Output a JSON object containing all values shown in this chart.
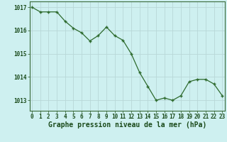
{
  "x": [
    0,
    1,
    2,
    3,
    4,
    5,
    6,
    7,
    8,
    9,
    10,
    11,
    12,
    13,
    14,
    15,
    16,
    17,
    18,
    19,
    20,
    21,
    22,
    23
  ],
  "y": [
    1017.0,
    1016.8,
    1016.8,
    1016.8,
    1016.4,
    1016.1,
    1015.9,
    1015.55,
    1015.78,
    1016.15,
    1015.78,
    1015.58,
    1015.0,
    1014.2,
    1013.6,
    1013.0,
    1013.1,
    1013.0,
    1013.2,
    1013.8,
    1013.9,
    1013.9,
    1013.7,
    1013.2
  ],
  "line_color": "#2d6a2d",
  "marker_color": "#2d6a2d",
  "bg_color": "#cef0f0",
  "grid_color_v": "#b8d8d8",
  "grid_color_h": "#b8d8d8",
  "tick_label_color": "#1a4a1a",
  "xlabel": "Graphe pression niveau de la mer (hPa)",
  "xlabel_color": "#1a4a1a",
  "ylim": [
    1012.55,
    1017.25
  ],
  "yticks": [
    1013,
    1014,
    1015,
    1016,
    1017
  ],
  "xticks": [
    0,
    1,
    2,
    3,
    4,
    5,
    6,
    7,
    8,
    9,
    10,
    11,
    12,
    13,
    14,
    15,
    16,
    17,
    18,
    19,
    20,
    21,
    22,
    23
  ],
  "xtick_labels": [
    "0",
    "1",
    "2",
    "3",
    "4",
    "5",
    "6",
    "7",
    "8",
    "9",
    "10",
    "11",
    "12",
    "13",
    "14",
    "15",
    "16",
    "17",
    "18",
    "19",
    "20",
    "21",
    "22",
    "23"
  ],
  "tick_fontsize": 5.5,
  "xlabel_fontsize": 7.0
}
